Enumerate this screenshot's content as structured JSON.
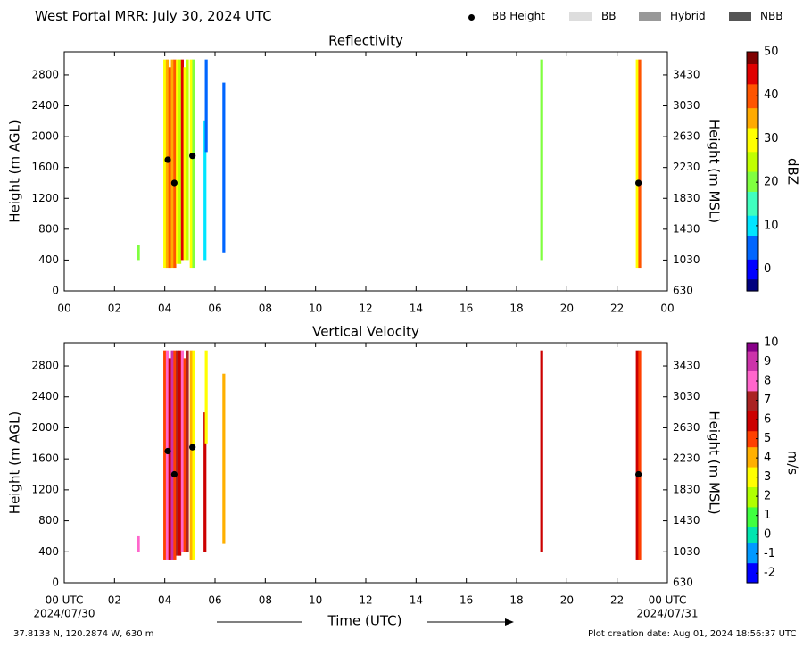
{
  "header": {
    "title": "West Portal MRR:  July 30, 2024 UTC",
    "legend": [
      {
        "label": "BB Height",
        "kind": "dot",
        "color": "#000000"
      },
      {
        "label": "BB",
        "kind": "swatch",
        "color": "#dddddd"
      },
      {
        "label": "Hybrid",
        "kind": "swatch",
        "color": "#999999"
      },
      {
        "label": "NBB",
        "kind": "swatch",
        "color": "#555555"
      }
    ]
  },
  "footer": {
    "location": "37.8133 N, 120.2874 W, 630 m",
    "created": "Plot creation date: Aug 01, 2024 18:56:37 UTC",
    "start_date": "2024/07/30",
    "end_date": "2024/07/31",
    "xlabel": "Time (UTC)"
  },
  "chart_data": [
    {
      "type": "heatmap",
      "title": "Reflectivity",
      "xlabel": "",
      "ylabel": "Height (m AGL)",
      "y2label": "Height (m MSL)",
      "xlim": [
        0,
        24
      ],
      "ylim": [
        0,
        3100
      ],
      "xticks": [
        "00",
        "02",
        "04",
        "06",
        "08",
        "10",
        "12",
        "14",
        "16",
        "18",
        "20",
        "22",
        "00"
      ],
      "yticks": [
        "0",
        "400",
        "800",
        "1200",
        "1600",
        "2000",
        "2400",
        "2800"
      ],
      "y2ticks": [
        "630",
        "1030",
        "1430",
        "1830",
        "2230",
        "2630",
        "3030",
        "3430"
      ],
      "colorbar": {
        "label": "dBZ",
        "range": [
          -5,
          50
        ],
        "ticks": [
          "0",
          "10",
          "20",
          "30",
          "40",
          "50"
        ],
        "tick_values": [
          0,
          10,
          20,
          30,
          40,
          50
        ]
      },
      "bb_height": [
        {
          "t": 4.12,
          "h": 1700
        },
        {
          "t": 4.38,
          "h": 1400
        },
        {
          "t": 5.1,
          "h": 1750
        },
        {
          "t": 22.85,
          "h": 1400
        }
      ],
      "echo_columns": [
        {
          "t": 2.95,
          "h0": 400,
          "h1": 600,
          "v": 22
        },
        {
          "t": 4.0,
          "h0": 300,
          "h1": 3000,
          "v": 28
        },
        {
          "t": 4.1,
          "h0": 300,
          "h1": 3000,
          "v": 33
        },
        {
          "t": 4.2,
          "h0": 300,
          "h1": 2900,
          "v": 42
        },
        {
          "t": 4.3,
          "h0": 300,
          "h1": 3000,
          "v": 36
        },
        {
          "t": 4.4,
          "h0": 300,
          "h1": 3000,
          "v": 40
        },
        {
          "t": 4.5,
          "h0": 350,
          "h1": 3000,
          "v": 30
        },
        {
          "t": 4.6,
          "h0": 350,
          "h1": 3000,
          "v": 26
        },
        {
          "t": 4.7,
          "h0": 400,
          "h1": 3000,
          "v": 44
        },
        {
          "t": 4.8,
          "h0": 400,
          "h1": 2900,
          "v": 32
        },
        {
          "t": 4.9,
          "h0": 400,
          "h1": 3000,
          "v": 25
        },
        {
          "t": 5.05,
          "h0": 300,
          "h1": 3000,
          "v": 28
        },
        {
          "t": 5.15,
          "h0": 300,
          "h1": 3000,
          "v": 22
        },
        {
          "t": 5.6,
          "h0": 400,
          "h1": 2200,
          "v": 12
        },
        {
          "t": 5.65,
          "h0": 1800,
          "h1": 3000,
          "v": 6
        },
        {
          "t": 6.35,
          "h0": 500,
          "h1": 2700,
          "v": 4
        },
        {
          "t": 19.0,
          "h0": 400,
          "h1": 3000,
          "v": 18
        },
        {
          "t": 22.8,
          "h0": 300,
          "h1": 3000,
          "v": 32
        },
        {
          "t": 22.9,
          "h0": 300,
          "h1": 3000,
          "v": 40
        }
      ]
    },
    {
      "type": "heatmap",
      "title": "Vertical Velocity",
      "xlabel": "Time (UTC)",
      "ylabel": "Height (m AGL)",
      "y2label": "Height (m MSL)",
      "xlim": [
        0,
        24
      ],
      "ylim": [
        0,
        3100
      ],
      "xticks": [
        "00 UTC",
        "02",
        "04",
        "06",
        "08",
        "10",
        "12",
        "14",
        "16",
        "18",
        "20",
        "22",
        "00 UTC"
      ],
      "yticks": [
        "0",
        "400",
        "800",
        "1200",
        "1600",
        "2000",
        "2400",
        "2800"
      ],
      "y2ticks": [
        "630",
        "1030",
        "1430",
        "1830",
        "2230",
        "2630",
        "3030",
        "3430"
      ],
      "colorbar": {
        "label": "m/s",
        "range": [
          -2.5,
          10
        ],
        "ticks": [
          "-2",
          "-1",
          "0",
          "1",
          "2",
          "3",
          "4",
          "5",
          "6",
          "7",
          "8",
          "9",
          "10"
        ],
        "tick_values": [
          -2,
          -1,
          0,
          1,
          2,
          3,
          4,
          5,
          6,
          7,
          8,
          9,
          10
        ]
      },
      "bb_height": [
        {
          "t": 4.12,
          "h": 1700
        },
        {
          "t": 4.38,
          "h": 1400
        },
        {
          "t": 5.1,
          "h": 1750
        },
        {
          "t": 22.85,
          "h": 1400
        }
      ],
      "echo_columns": [
        {
          "t": 2.95,
          "h0": 400,
          "h1": 600,
          "v": 8
        },
        {
          "t": 4.0,
          "h0": 300,
          "h1": 3000,
          "v": 5.5
        },
        {
          "t": 4.1,
          "h0": 300,
          "h1": 3000,
          "v": 8.5
        },
        {
          "t": 4.2,
          "h0": 300,
          "h1": 2900,
          "v": 6.5
        },
        {
          "t": 4.3,
          "h0": 300,
          "h1": 3000,
          "v": 9.5
        },
        {
          "t": 4.4,
          "h0": 300,
          "h1": 3000,
          "v": 5
        },
        {
          "t": 4.5,
          "h0": 350,
          "h1": 3000,
          "v": 7.5
        },
        {
          "t": 4.6,
          "h0": 350,
          "h1": 3000,
          "v": 6
        },
        {
          "t": 4.7,
          "h0": 400,
          "h1": 3000,
          "v": 8
        },
        {
          "t": 4.8,
          "h0": 400,
          "h1": 2900,
          "v": 5.5
        },
        {
          "t": 4.9,
          "h0": 400,
          "h1": 3000,
          "v": 7
        },
        {
          "t": 5.05,
          "h0": 300,
          "h1": 3000,
          "v": 4.5
        },
        {
          "t": 5.15,
          "h0": 300,
          "h1": 3000,
          "v": 3.5
        },
        {
          "t": 5.6,
          "h0": 400,
          "h1": 2200,
          "v": 6.5
        },
        {
          "t": 5.65,
          "h0": 1800,
          "h1": 3000,
          "v": 3
        },
        {
          "t": 6.35,
          "h0": 500,
          "h1": 2700,
          "v": 4
        },
        {
          "t": 19.0,
          "h0": 400,
          "h1": 3000,
          "v": 6
        },
        {
          "t": 22.8,
          "h0": 300,
          "h1": 3000,
          "v": 6.5
        },
        {
          "t": 22.9,
          "h0": 300,
          "h1": 3000,
          "v": 5.5
        }
      ]
    }
  ]
}
